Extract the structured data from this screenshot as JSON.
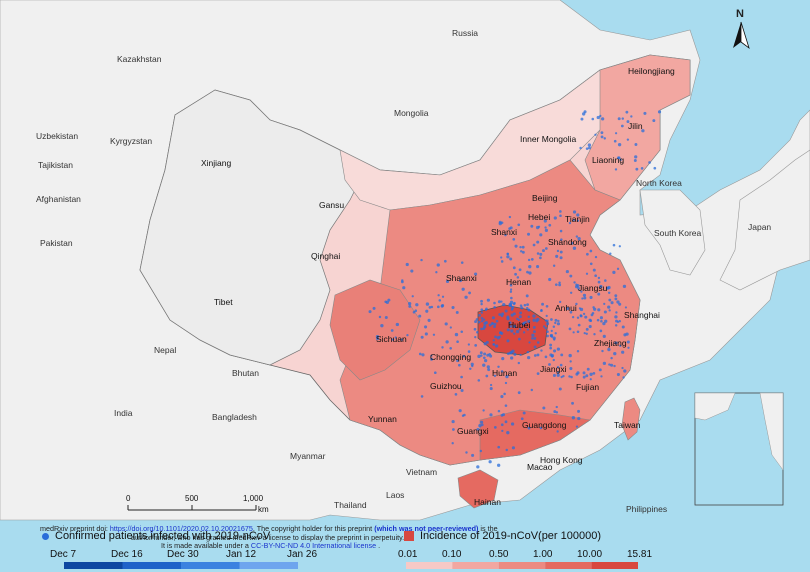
{
  "colors": {
    "sea": "#a9dcef",
    "land_other": "#f0f0f0",
    "china_base": "#f7d4d2",
    "incidence_light": "#f2aaa5",
    "incidence_mid": "#e98078",
    "incidence_high": "#e0584f",
    "hubei": "#d8473f",
    "point": "#2a6dd9",
    "border": "#777777"
  },
  "north_arrow": {
    "label": "N",
    "icon": "north-arrow-icon"
  },
  "labels": {
    "countries": [
      "Russia",
      "Kazakhstan",
      "Uzbekistan",
      "Kyrgyzstan",
      "Tajikistan",
      "Afghanistan",
      "Pakistan",
      "Mongolia",
      "North Korea",
      "South Korea",
      "Japan",
      "Nepal",
      "Bhutan",
      "India",
      "Bangladesh",
      "Myanmar",
      "Laos",
      "Vietnam",
      "Thailand",
      "Philippines"
    ],
    "provinces": [
      "Heilongjiang",
      "Jilin",
      "Liaoning",
      "Inner Mongolia",
      "Beijing",
      "Tianjin",
      "Hebei",
      "Shanxi",
      "Shandong",
      "Xinjiang",
      "Gansu",
      "Qinghai",
      "Shaanxi",
      "Henan",
      "Jiangsu",
      "Anhui",
      "Shanghai",
      "Hubei",
      "Zhejiang",
      "Sichuan",
      "Chongqing",
      "Tibet",
      "Jiangxi",
      "Hunan",
      "Fujian",
      "Guizhou",
      "Yunnan",
      "Guangxi",
      "Guangdong",
      "Taiwan",
      "Hong Kong",
      "Macao",
      "Hainan"
    ]
  },
  "scale_bar": {
    "ticks": [
      "0",
      "500",
      "1,000"
    ],
    "unit": "km"
  },
  "preprint": {
    "line1_a": "medRxiv preprint doi: ",
    "line1_link": "https://doi.org/10.1101/2020.02.10.20021675",
    "line1_b": ". The copyright holder for this preprint ",
    "line1_bold": "(which was not peer-reviewed)",
    "line1_c": " is the",
    "line2": "author/funder, who has granted medRxiv a license to display the preprint in perpetuity.",
    "line3_a": "It is made available under a ",
    "line3_link": "CC-BY-NC-ND 4.0 International license",
    "line3_b": " ."
  },
  "legend": {
    "points_label": "Confirmed patients infected with 2019-nCoV",
    "incidence_label": "Incidence of 2019-nCoV(per 100000)",
    "date_ticks": [
      "Dec 7",
      "Dec 16",
      "Dec 30",
      "Jan 12",
      "Jan 26"
    ],
    "date_colors": [
      "#0d47a1",
      "#1e63c9",
      "#3b82e0",
      "#6ea5ee"
    ],
    "incidence_ticks": [
      "0.01",
      "0.10",
      "0.50",
      "1.00",
      "10.00",
      "15.81"
    ],
    "incidence_colors": [
      "#f7c9c6",
      "#f2a7a1",
      "#ec8a82",
      "#e56a61",
      "#d8473f"
    ]
  }
}
